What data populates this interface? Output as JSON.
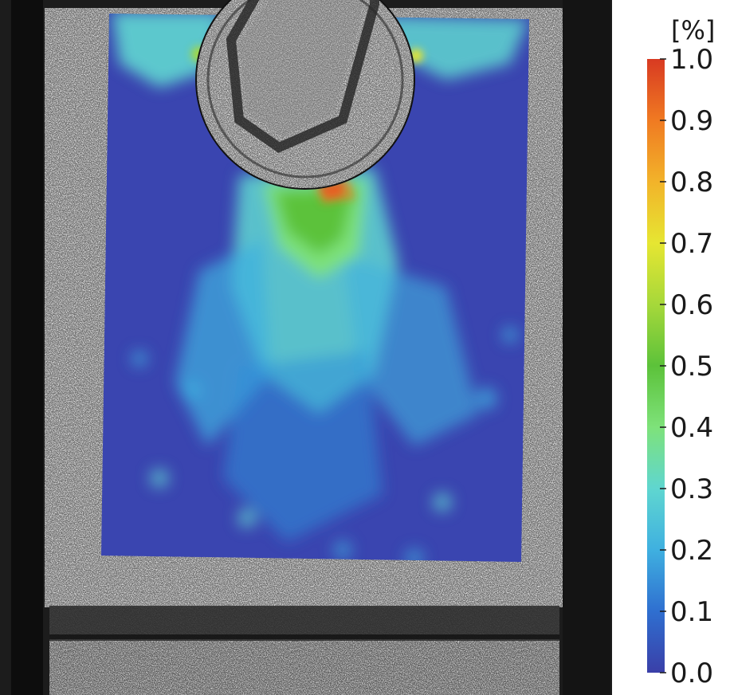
{
  "figure": {
    "description_kind": "DIC strain field overlay on speckle specimen with pin hole"
  },
  "colorbar": {
    "unit": "[%]",
    "min": 0.0,
    "max": 1.0,
    "ticks": [
      "1.0",
      "0.9",
      "0.8",
      "0.7",
      "0.6",
      "0.5",
      "0.4",
      "0.3",
      "0.2",
      "0.1",
      "0.0"
    ],
    "tick_values": [
      1.0,
      0.9,
      0.8,
      0.7,
      0.6,
      0.5,
      0.4,
      0.3,
      0.2,
      0.1,
      0.0
    ],
    "colormap": [
      "#3a3fa8",
      "#2f6fd0",
      "#3fb0e0",
      "#5fd6d0",
      "#7ee27a",
      "#5cc23a",
      "#a6d83a",
      "#e6e632",
      "#f2b32a",
      "#f07a22",
      "#d83a22"
    ]
  },
  "field": {
    "background_color": "#3a45b0",
    "hotspot_color": "#e0301e"
  }
}
